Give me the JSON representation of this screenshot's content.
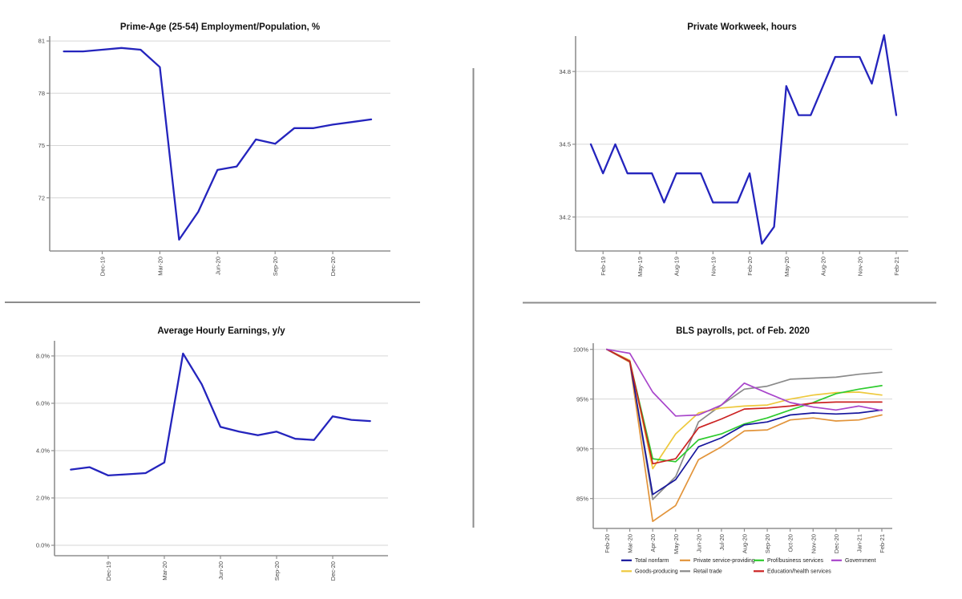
{
  "page": {
    "background": "#ffffff",
    "divider_color": "#8c8c8c"
  },
  "chart_data": [
    {
      "id": "prime_age_epop",
      "type": "line",
      "title": "Prime-Age (25-54) Employment/Population, %",
      "x_labels": [
        "Oct-19",
        "Nov-19",
        "Dec-19",
        "Jan-20",
        "Feb-20",
        "Mar-20",
        "Apr-20",
        "May-20",
        "Jun-20",
        "Jul-20",
        "Aug-20",
        "Sep-20",
        "Oct-20",
        "Nov-20",
        "Dec-20",
        "Jan-21",
        "Feb-21"
      ],
      "x_tick_indices": [
        2,
        5,
        8,
        11,
        14
      ],
      "yticks": [
        72,
        75,
        78,
        81
      ],
      "ytick_labels": [
        "72",
        "75",
        "78",
        "81"
      ],
      "ylim": [
        68.95,
        81.28
      ],
      "grid": true,
      "series": [
        {
          "name": "Employment/Population",
          "color": "#2424bd",
          "values": [
            80.4,
            80.4,
            80.5,
            80.6,
            80.5,
            79.5,
            69.6,
            71.2,
            73.6,
            73.8,
            75.35,
            75.1,
            76.0,
            76.0,
            76.2,
            76.35,
            76.5
          ]
        }
      ]
    },
    {
      "id": "private_workweek",
      "type": "line",
      "title": "Private Workweek, hours",
      "x_labels": [
        "Jan-19",
        "Feb-19",
        "Mar-19",
        "Apr-19",
        "May-19",
        "Jun-19",
        "Jul-19",
        "Aug-19",
        "Sep-19",
        "Oct-19",
        "Nov-19",
        "Dec-19",
        "Jan-20",
        "Feb-20",
        "Mar-20",
        "Apr-20",
        "May-20",
        "Jun-20",
        "Jul-20",
        "Aug-20",
        "Sep-20",
        "Oct-20",
        "Nov-20",
        "Dec-20",
        "Jan-21",
        "Feb-21"
      ],
      "x_tick_indices": [
        1,
        4,
        7,
        10,
        13,
        16,
        19,
        22,
        25
      ],
      "yticks": [
        34.2,
        34.5,
        34.8
      ],
      "ytick_labels": [
        "34.2",
        "34.5",
        "34.8"
      ],
      "ylim": [
        34.06,
        34.946
      ],
      "grid": true,
      "series": [
        {
          "name": "Private Workweek",
          "color": "#2424bd",
          "values": [
            34.5,
            34.38,
            34.5,
            34.38,
            34.38,
            34.38,
            34.26,
            34.38,
            34.38,
            34.38,
            34.26,
            34.26,
            34.26,
            34.38,
            34.09,
            34.16,
            34.74,
            34.62,
            34.62,
            34.74,
            34.86,
            34.86,
            34.86,
            34.75,
            34.95,
            34.62
          ]
        }
      ]
    },
    {
      "id": "avg_hourly_earnings",
      "type": "line",
      "title": "Average Hourly Earnings, y/y",
      "x_labels": [
        "Oct-19",
        "Nov-19",
        "Dec-19",
        "Jan-20",
        "Feb-20",
        "Mar-20",
        "Apr-20",
        "May-20",
        "Jun-20",
        "Jul-20",
        "Aug-20",
        "Sep-20",
        "Oct-20",
        "Nov-20",
        "Dec-20",
        "Jan-21",
        "Feb-21"
      ],
      "x_tick_indices": [
        2,
        5,
        8,
        11,
        14
      ],
      "yticks": [
        0,
        2,
        4,
        6,
        8
      ],
      "ytick_labels": [
        "0.0%",
        "2.0%",
        "4.0%",
        "6.0%",
        "8.0%"
      ],
      "ylim": [
        -0.44,
        8.64
      ],
      "grid": true,
      "series": [
        {
          "name": "AHE y/y",
          "color": "#2424bd",
          "values": [
            3.2,
            3.3,
            2.95,
            3.0,
            3.05,
            3.5,
            8.1,
            6.8,
            5.0,
            4.8,
            4.65,
            4.8,
            4.5,
            4.45,
            5.45,
            5.3,
            5.25
          ]
        }
      ]
    },
    {
      "id": "bls_payrolls",
      "type": "line",
      "title": "BLS payrolls, pct. of Feb. 2020",
      "x_labels": [
        "Feb-20",
        "Mar-20",
        "Apr-20",
        "May-20",
        "Jun-20",
        "Jul-20",
        "Aug-20",
        "Sep-20",
        "Oct-20",
        "Nov-20",
        "Dec-20",
        "Jan-21",
        "Feb-21"
      ],
      "x_tick_indices": [
        0,
        1,
        2,
        3,
        4,
        5,
        6,
        7,
        8,
        9,
        10,
        11,
        12
      ],
      "yticks": [
        85,
        90,
        95,
        100
      ],
      "ytick_labels": [
        "85%",
        "90%",
        "95%",
        "100%"
      ],
      "ylim": [
        81.99,
        100.62
      ],
      "grid": true,
      "series": [
        {
          "name": "Retail trade",
          "color": "#8a8a8a",
          "values": [
            100,
            98.8,
            84.9,
            87.2,
            92.7,
            94.4,
            96.0,
            96.3,
            97.0,
            97.1,
            97.2,
            97.5,
            97.7
          ]
        },
        {
          "name": "Private service-providing",
          "color": "#e2943a",
          "values": [
            100,
            98.7,
            82.7,
            84.3,
            88.9,
            90.2,
            91.8,
            91.9,
            92.9,
            93.1,
            92.8,
            92.9,
            93.4
          ]
        },
        {
          "name": "Goods-producing",
          "color": "#eec93d",
          "values": [
            100,
            98.9,
            88.0,
            91.5,
            93.6,
            94.1,
            94.3,
            94.4,
            95.0,
            95.4,
            95.65,
            95.7,
            95.4
          ]
        },
        {
          "name": "Prof/business services",
          "color": "#2ecb2e",
          "values": [
            100,
            98.8,
            89.0,
            88.7,
            90.9,
            91.5,
            92.5,
            93.1,
            93.9,
            94.65,
            95.55,
            96.0,
            96.35
          ]
        },
        {
          "name": "Total nonfarm",
          "color": "#16169c",
          "values": [
            100,
            98.8,
            85.4,
            86.9,
            90.2,
            91.1,
            92.4,
            92.7,
            93.4,
            93.6,
            93.5,
            93.6,
            93.9
          ]
        },
        {
          "name": "Education/health services",
          "color": "#cb2222",
          "values": [
            100,
            98.8,
            88.5,
            89.0,
            92.1,
            93.0,
            94.0,
            94.1,
            94.3,
            94.6,
            94.7,
            94.7,
            94.7
          ]
        },
        {
          "name": "Government",
          "color": "#a845cb",
          "values": [
            100,
            99.6,
            95.7,
            93.3,
            93.4,
            94.4,
            96.6,
            95.6,
            94.65,
            94.2,
            93.9,
            94.3,
            93.85
          ]
        }
      ],
      "legend": {
        "rows": [
          [
            "Total nonfarm",
            "Private service-providing",
            "Prof/business services",
            "Government"
          ],
          [
            "Goods-producing",
            "Retail trade",
            "Education/health services"
          ]
        ]
      }
    }
  ]
}
